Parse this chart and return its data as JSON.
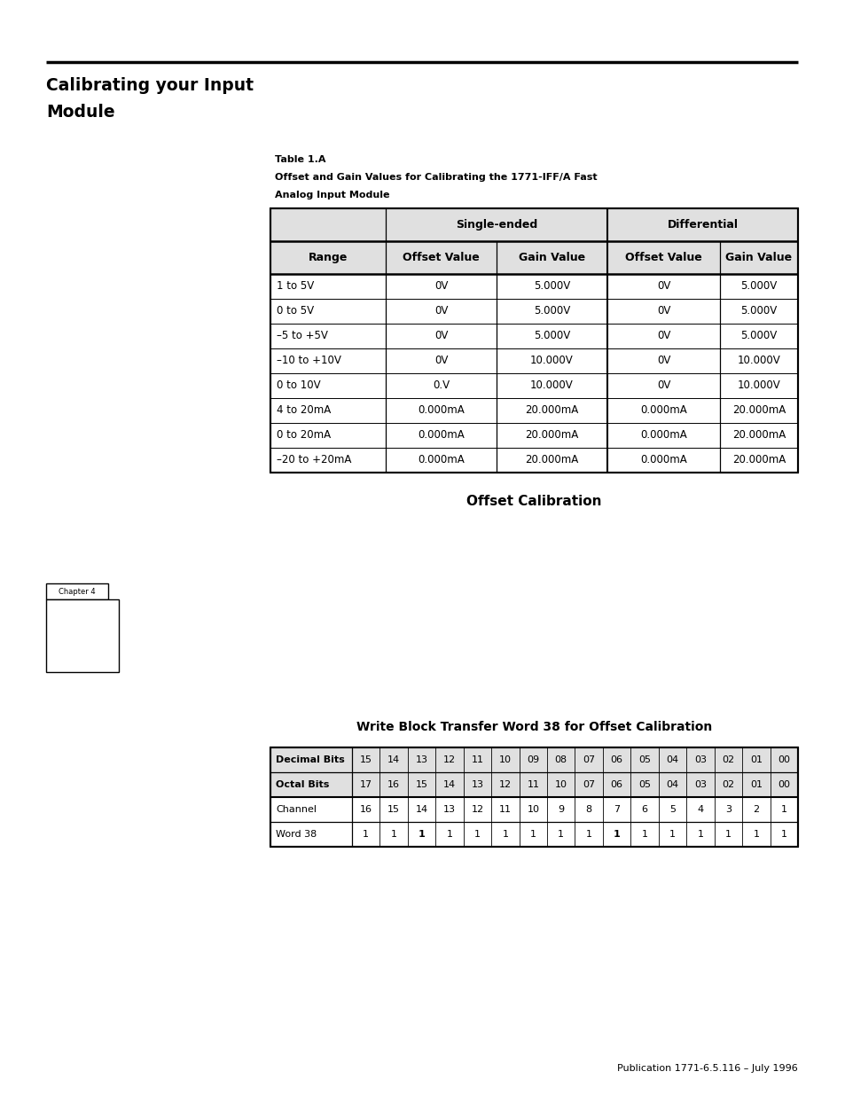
{
  "page_title_line1": "Calibrating your Input",
  "page_title_line2": "Module",
  "table1_caption_line1": "Table 1.A",
  "table1_caption_line2": "Offset and Gain Values for Calibrating the 1771-IFF/A Fast",
  "table1_caption_line3": "Analog Input Module",
  "table1_headers_row2": [
    "Range",
    "Offset Value",
    "Gain Value",
    "Offset Value",
    "Gain Value"
  ],
  "table1_data": [
    [
      "1 to 5V",
      "0V",
      "5.000V",
      "0V",
      "5.000V"
    ],
    [
      "0 to 5V",
      "0V",
      "5.000V",
      "0V",
      "5.000V"
    ],
    [
      "–5 to +5V",
      "0V",
      "5.000V",
      "0V",
      "5.000V"
    ],
    [
      "–10 to +10V",
      "0V",
      "10.000V",
      "0V",
      "10.000V"
    ],
    [
      "0 to 10V",
      "0.V",
      "10.000V",
      "0V",
      "10.000V"
    ],
    [
      "4 to 20mA",
      "0.000mA",
      "20.000mA",
      "0.000mA",
      "20.000mA"
    ],
    [
      "0 to 20mA",
      "0.000mA",
      "20.000mA",
      "0.000mA",
      "20.000mA"
    ],
    [
      "–20 to +20mA",
      "0.000mA",
      "20.000mA",
      "0.000mA",
      "20.000mA"
    ]
  ],
  "section2_title": "Offset Calibration",
  "chapter_box_text": "Chapter 4",
  "table2_title": "Write Block Transfer Word 38 for Offset Calibration",
  "table2_row1_label": "Decimal Bits",
  "table2_row1_values": [
    "15",
    "14",
    "13",
    "12",
    "11",
    "10",
    "09",
    "08",
    "07",
    "06",
    "05",
    "04",
    "03",
    "02",
    "01",
    "00"
  ],
  "table2_row2_label": "Octal Bits",
  "table2_row2_values": [
    "17",
    "16",
    "15",
    "14",
    "13",
    "12",
    "11",
    "10",
    "07",
    "06",
    "05",
    "04",
    "03",
    "02",
    "01",
    "00"
  ],
  "table2_row3_label": "Channel",
  "table2_row3_values": [
    "16",
    "15",
    "14",
    "13",
    "12",
    "11",
    "10",
    "9",
    "8",
    "7",
    "6",
    "5",
    "4",
    "3",
    "2",
    "1"
  ],
  "table2_row4_label": "Word 38",
  "table2_row4_values": [
    "1",
    "1",
    "1",
    "1",
    "1",
    "1",
    "1",
    "1",
    "1",
    "1",
    "1",
    "1",
    "1",
    "1",
    "1",
    "1"
  ],
  "table2_row4_bold_indices": [
    2,
    9
  ],
  "footer_text": "Publication 1771-6.5.116 – July 1996",
  "bg_color": "#ffffff",
  "header_bg": "#e0e0e0",
  "text_color": "#000000",
  "single_ended_label": "Single-ended",
  "differential_label": "Differential"
}
